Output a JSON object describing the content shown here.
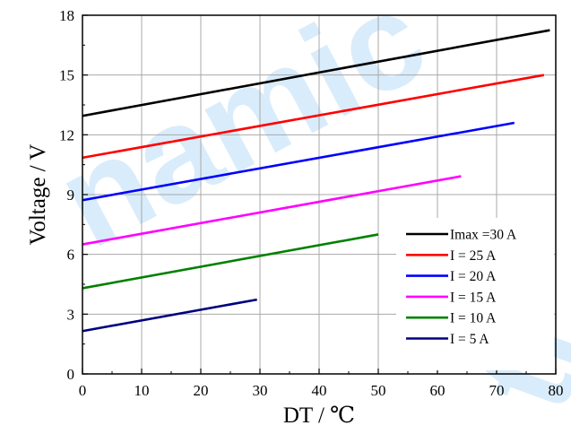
{
  "watermark": {
    "left_text": "namic",
    "right_text": "ti"
  },
  "chart_data": {
    "type": "line",
    "xlabel": "DT / ℃",
    "ylabel": "Voltage / V",
    "xlim": [
      0,
      80
    ],
    "ylim": [
      0,
      18
    ],
    "x_ticks": [
      0,
      10,
      20,
      30,
      40,
      50,
      60,
      70,
      80
    ],
    "y_ticks": [
      0,
      3,
      6,
      9,
      12,
      15,
      18
    ],
    "x_tick_labels": [
      "0",
      "10",
      "20",
      "30",
      "40",
      "50",
      "60",
      "70",
      "80"
    ],
    "y_tick_labels": [
      "0",
      "3",
      "6",
      "9",
      "12",
      "15",
      "18"
    ],
    "grid": true,
    "legend_position": "bottom-right",
    "series": [
      {
        "name": "Imax =30  A",
        "color": "#000000",
        "x": [
          0,
          79
        ],
        "y": [
          12.95,
          17.25
        ]
      },
      {
        "name": "I = 25 A",
        "color": "#ff0000",
        "x": [
          0,
          78
        ],
        "y": [
          10.85,
          15.0
        ]
      },
      {
        "name": "I = 20 A",
        "color": "#0000ff",
        "x": [
          0,
          73
        ],
        "y": [
          8.72,
          12.6
        ]
      },
      {
        "name": "I = 15 A",
        "color": "#ff00ff",
        "x": [
          0,
          64
        ],
        "y": [
          6.5,
          9.92
        ]
      },
      {
        "name": "I = 10 A",
        "color": "#008000",
        "x": [
          0,
          50
        ],
        "y": [
          4.3,
          7.0
        ]
      },
      {
        "name": "I = 5 A",
        "color": "#000080",
        "x": [
          0,
          29.5
        ],
        "y": [
          2.15,
          3.73
        ]
      }
    ]
  }
}
